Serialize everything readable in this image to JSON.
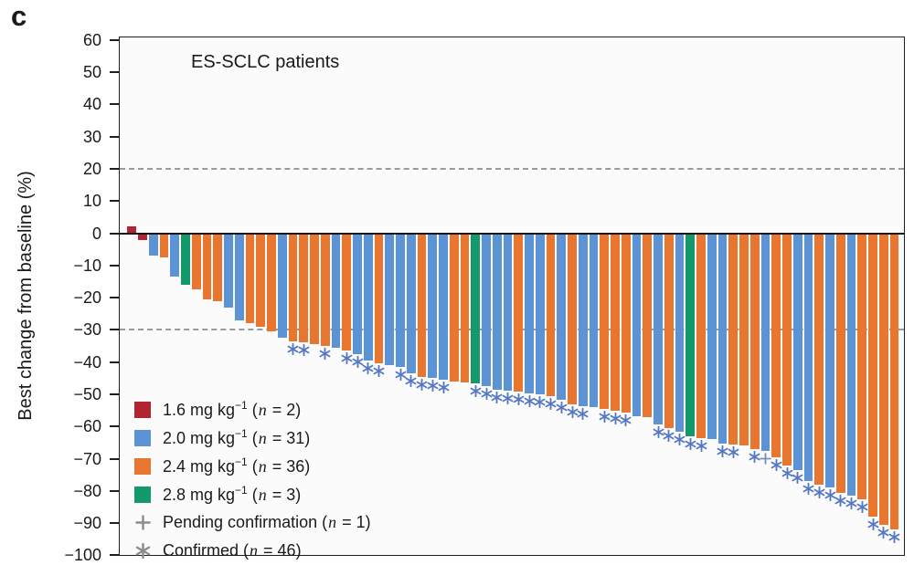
{
  "panel_label": "c",
  "title": "ES-SCLC patients",
  "y_axis": {
    "label": "Best change from baseline (%)",
    "tick_max": 60,
    "tick_min": -100,
    "tick_step": 10
  },
  "reference_lines": [
    20,
    -30
  ],
  "colors": {
    "dose_1_6": "#b12430",
    "dose_2_0": "#5b93d4",
    "dose_2_4": "#e8762f",
    "dose_2_8": "#13996b",
    "bar_marker": "#5577c4",
    "pending_marker": "#7b8fbe",
    "legend_glyph": "#8c8c8c",
    "dashed_line": "#9a9a9a",
    "axis": "#1f1f1f"
  },
  "legend": {
    "dose_groups": [
      {
        "dose": "1.6",
        "label": "1.6 mg kg",
        "exp": "−1",
        "n": 2
      },
      {
        "dose": "2.0",
        "label": "2.0 mg kg",
        "exp": "−1",
        "n": 31
      },
      {
        "dose": "2.4",
        "label": "2.4 mg kg",
        "exp": "−1",
        "n": 36
      },
      {
        "dose": "2.8",
        "label": "2.8 mg kg",
        "exp": "−1",
        "n": 3
      }
    ],
    "status_markers": [
      {
        "glyph": "plus",
        "label": "Pending confirmation",
        "n": 1
      },
      {
        "glyph": "asterisk",
        "label": "Confirmed",
        "n": 46
      }
    ],
    "n_symbol": "n"
  },
  "chart_data": {
    "type": "bar",
    "subtype": "waterfall",
    "title": "ES-SCLC patients",
    "ylabel": "Best change from baseline (%)",
    "ylim": [
      -100,
      60
    ],
    "reference_lines": [
      20,
      -30
    ],
    "legend_position": "lower-left",
    "grid": false,
    "bars": {
      "dose": [
        "1.6",
        "1.6",
        "2.0",
        "2.4",
        "2.0",
        "2.8",
        "2.4",
        "2.4",
        "2.4",
        "2.0",
        "2.0",
        "2.4",
        "2.4",
        "2.4",
        "2.0",
        "2.4",
        "2.4",
        "2.4",
        "2.4",
        "2.0",
        "2.4",
        "2.0",
        "2.0",
        "2.4",
        "2.0",
        "2.0",
        "2.0",
        "2.4",
        "2.0",
        "2.0",
        "2.4",
        "2.4",
        "2.8",
        "2.0",
        "2.0",
        "2.0",
        "2.4",
        "2.0",
        "2.0",
        "2.4",
        "2.0",
        "2.4",
        "2.0",
        "2.0",
        "2.4",
        "2.4",
        "2.4",
        "2.0",
        "2.4",
        "2.0",
        "2.4",
        "2.0",
        "2.8",
        "2.4",
        "2.0",
        "2.0",
        "2.4",
        "2.4",
        "2.4",
        "2.0",
        "2.4",
        "2.4",
        "2.0",
        "2.0",
        "2.4",
        "2.0",
        "2.4",
        "2.0",
        "2.4",
        "2.4",
        "2.4",
        "2.4"
      ],
      "value": [
        2,
        -2,
        -7,
        -7.5,
        -13.5,
        -16,
        -17.5,
        -20.5,
        -21,
        -23,
        -27,
        -28,
        -29,
        -30.5,
        -32.5,
        -33.5,
        -34,
        -34.5,
        -35,
        -35.5,
        -36.5,
        -37.5,
        -39.5,
        -40.5,
        -41,
        -41.5,
        -43.5,
        -44.5,
        -45,
        -45.5,
        -46,
        -46.3,
        -46.6,
        -47.5,
        -48.5,
        -49,
        -49.3,
        -49.7,
        -50,
        -50.6,
        -51.6,
        -53.2,
        -53.7,
        -54,
        -54.5,
        -55.1,
        -55.6,
        -56.7,
        -57,
        -59.3,
        -60.5,
        -61.7,
        -63.1,
        -63.6,
        -64,
        -65.2,
        -65.5,
        -66,
        -67,
        -67.6,
        -69.5,
        -72,
        -73.5,
        -77,
        -78,
        -79,
        -80.5,
        -81.5,
        -82.5,
        -88,
        -90.5,
        -92
      ],
      "status": [
        "",
        "",
        "",
        "",
        "",
        "",
        "",
        "",
        "",
        "",
        "",
        "",
        "",
        "",
        "",
        "c",
        "c",
        "",
        "c",
        "",
        "c",
        "c",
        "c",
        "c",
        "",
        "c",
        "c",
        "c",
        "c",
        "c",
        "",
        "",
        "c",
        "c",
        "c",
        "c",
        "c",
        "c",
        "c",
        "c",
        "c",
        "c",
        "c",
        "",
        "c",
        "c",
        "c",
        "",
        "",
        "c",
        "c",
        "c",
        "c",
        "c",
        "",
        "c",
        "c",
        "",
        "c",
        "p",
        "c",
        "c",
        "c",
        "c",
        "c",
        "c",
        "c",
        "c",
        "c",
        "c",
        "c",
        "c"
      ]
    }
  }
}
